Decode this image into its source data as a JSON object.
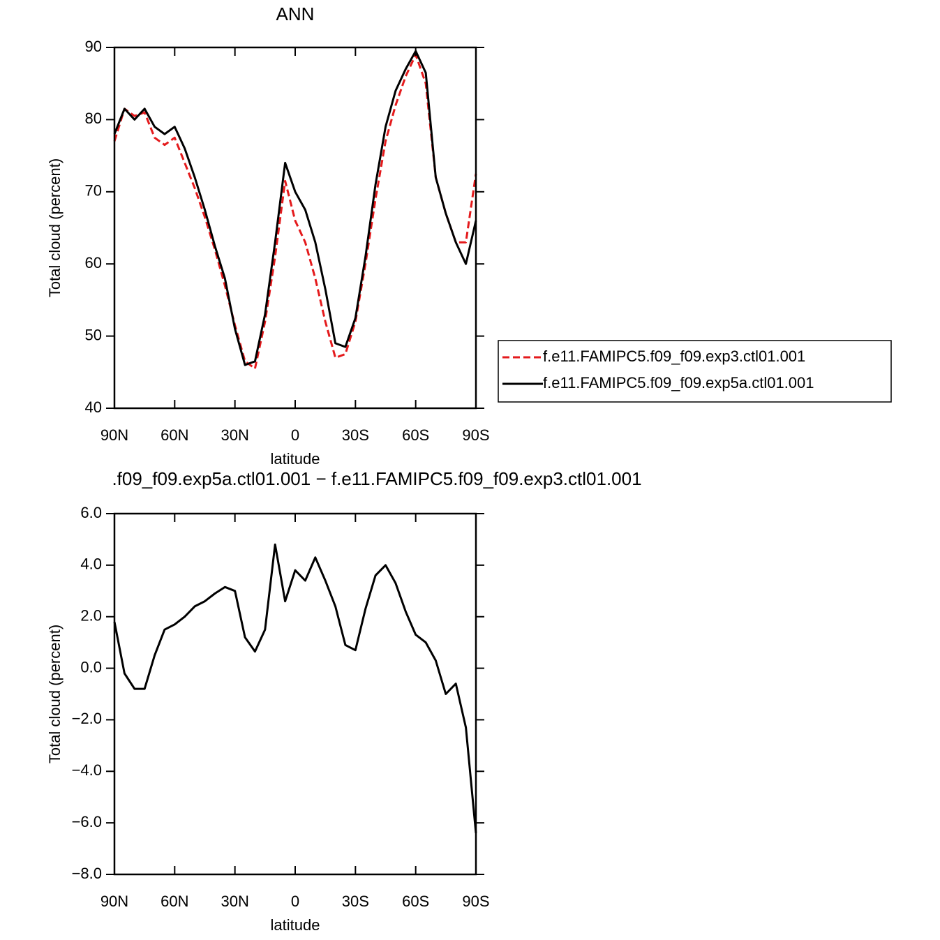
{
  "chart_data": [
    {
      "type": "line",
      "title": "ANN",
      "x_label": "latitude",
      "y_label": "Total cloud (percent)",
      "x": [
        90,
        85,
        80,
        75,
        70,
        65,
        60,
        55,
        50,
        45,
        40,
        35,
        30,
        25,
        20,
        15,
        10,
        5,
        0,
        -5,
        -10,
        -15,
        -20,
        -25,
        -30,
        -35,
        -40,
        -45,
        -50,
        -55,
        -60,
        -65,
        -70,
        -75,
        -80,
        -85,
        -90
      ],
      "xlim": [
        90,
        -90
      ],
      "xticks": [
        {
          "value": 90,
          "label": "90N"
        },
        {
          "value": 60,
          "label": "60N"
        },
        {
          "value": 30,
          "label": "30N"
        },
        0,
        {
          "value": -30,
          "label": "30S"
        },
        {
          "value": -60,
          "label": "60S"
        },
        {
          "value": -90,
          "label": "90S"
        }
      ],
      "ylim": [
        40,
        90
      ],
      "yticks": [
        40,
        50,
        60,
        70,
        80,
        90
      ],
      "series": [
        {
          "name": "f.e11.FAMIPC5.f09_f09.exp3.ctl01.001",
          "color": "#e41a1c",
          "dash": true,
          "values": [
            77,
            81.5,
            80.5,
            81,
            77.5,
            76.5,
            77.5,
            74,
            70.5,
            66.5,
            62,
            57,
            51.5,
            46.5,
            45.5,
            52,
            61,
            71.5,
            66,
            63,
            58,
            52,
            47,
            47.5,
            52,
            60,
            69,
            77,
            82,
            86,
            89,
            85,
            72,
            67,
            63,
            63,
            72.5
          ]
        },
        {
          "name": "f.e11.FAMIPC5.f09_f09.exp5a.ctl01.001",
          "color": "#000000",
          "dash": false,
          "values": [
            78,
            81.5,
            80,
            81.5,
            79,
            78,
            79,
            76,
            72,
            67.5,
            62.5,
            58,
            51,
            46,
            46.5,
            53,
            63,
            74,
            70,
            67.5,
            63,
            56.5,
            49,
            48.5,
            52.5,
            61,
            71,
            79,
            84,
            87,
            89.5,
            86.5,
            72,
            67,
            63,
            60,
            66
          ]
        }
      ]
    },
    {
      "type": "line",
      "title": ".f09_f09.exp5a.ctl01.001  −  f.e11.FAMIPC5.f09_f09.exp3.ctl01.001",
      "x_label": "latitude",
      "y_label": "Total cloud (percent)",
      "x": [
        90,
        85,
        80,
        75,
        70,
        65,
        60,
        55,
        50,
        45,
        40,
        35,
        30,
        25,
        20,
        15,
        10,
        5,
        0,
        -5,
        -10,
        -15,
        -20,
        -25,
        -30,
        -35,
        -40,
        -45,
        -50,
        -55,
        -60,
        -65,
        -70,
        -75,
        -80,
        -85,
        -90
      ],
      "xlim": [
        90,
        -90
      ],
      "xticks": [
        {
          "value": 90,
          "label": "90N"
        },
        {
          "value": 60,
          "label": "60N"
        },
        {
          "value": 30,
          "label": "30N"
        },
        0,
        {
          "value": -30,
          "label": "30S"
        },
        {
          "value": -60,
          "label": "60S"
        },
        {
          "value": -90,
          "label": "90S"
        }
      ],
      "ylim": [
        -8,
        6
      ],
      "yticks": [
        {
          "value": -8,
          "label": "−8.0"
        },
        {
          "value": -6,
          "label": "−6.0"
        },
        {
          "value": -4,
          "label": "−4.0"
        },
        {
          "value": -2,
          "label": "−2.0"
        },
        {
          "value": 0,
          "label": "0.0"
        },
        {
          "value": 2,
          "label": "2.0"
        },
        {
          "value": 4,
          "label": "4.0"
        },
        {
          "value": 6,
          "label": "6.0"
        }
      ],
      "series": [
        {
          "color": "#000000",
          "dash": false,
          "values": [
            1.8,
            -0.2,
            -0.8,
            -0.8,
            0.5,
            1.5,
            1.7,
            2.0,
            2.4,
            2.6,
            2.9,
            3.15,
            3.0,
            1.2,
            0.65,
            1.5,
            4.8,
            2.6,
            3.8,
            3.4,
            4.3,
            3.4,
            2.4,
            0.9,
            0.7,
            2.3,
            3.6,
            4.0,
            3.3,
            2.2,
            1.3,
            1.0,
            0.3,
            -1.0,
            -0.6,
            -2.3,
            -6.4
          ]
        }
      ]
    }
  ]
}
